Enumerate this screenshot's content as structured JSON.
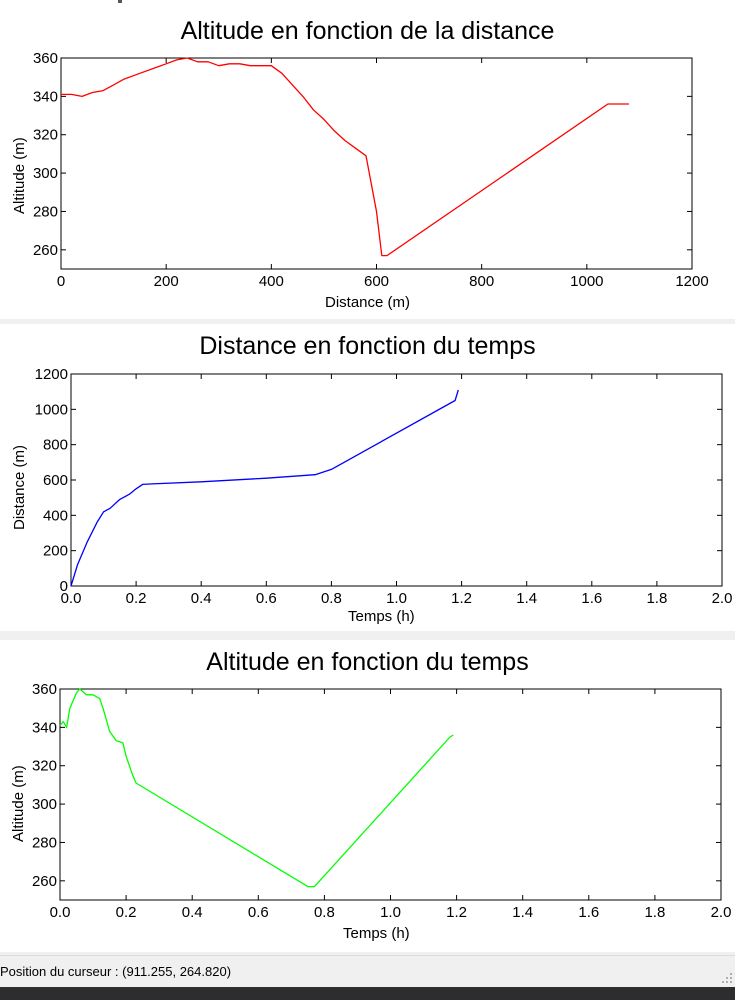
{
  "charts": [
    {
      "title": "Altitude en fonction de la distance",
      "xlabel": "Distance (m)",
      "ylabel": "Altitude (m)",
      "color": "#ff0000",
      "chart_data": {
        "type": "line",
        "xlim": [
          0,
          1200
        ],
        "ylim": [
          250,
          360
        ],
        "xticks": [
          0,
          200,
          400,
          600,
          800,
          1000,
          1200
        ],
        "yticks": [
          260,
          280,
          300,
          320,
          340,
          360
        ],
        "x": [
          0,
          20,
          40,
          60,
          80,
          100,
          120,
          150,
          180,
          200,
          220,
          240,
          260,
          280,
          300,
          320,
          340,
          360,
          380,
          400,
          420,
          440,
          460,
          480,
          500,
          520,
          540,
          560,
          580,
          600,
          610,
          620,
          1040,
          1080
        ],
        "y": [
          341,
          341,
          340,
          342,
          343,
          346,
          349,
          352,
          355,
          357,
          359,
          360,
          358,
          358,
          356,
          357,
          357,
          356,
          356,
          356,
          352,
          346,
          340,
          333,
          328,
          322,
          317,
          313,
          309,
          280,
          257,
          257,
          336,
          336
        ]
      }
    },
    {
      "title": "Distance en fonction du temps",
      "xlabel": "Temps (h)",
      "ylabel": "Distance (m)",
      "color": "#0000ff",
      "chart_data": {
        "type": "line",
        "xlim": [
          0,
          2.0
        ],
        "ylim": [
          0,
          1200
        ],
        "xticks": [
          "0.0",
          "0.2",
          "0.4",
          "0.6",
          "0.8",
          "1.0",
          "1.2",
          "1.4",
          "1.6",
          "1.8",
          "2.0"
        ],
        "yticks": [
          0,
          200,
          400,
          600,
          800,
          1000,
          1200
        ],
        "x": [
          0,
          0.02,
          0.05,
          0.08,
          0.1,
          0.12,
          0.15,
          0.18,
          0.2,
          0.22,
          0.25,
          0.4,
          0.6,
          0.75,
          0.8,
          1.18,
          1.19
        ],
        "y": [
          0,
          120,
          250,
          360,
          420,
          440,
          490,
          520,
          550,
          575,
          578,
          590,
          610,
          630,
          660,
          1050,
          1110
        ]
      }
    },
    {
      "title": "Altitude en fonction du temps",
      "xlabel": "Temps (h)",
      "ylabel": "Altitude (m)",
      "color": "#00ff00",
      "chart_data": {
        "type": "line",
        "xlim": [
          0,
          2.0
        ],
        "ylim": [
          250,
          360
        ],
        "xticks": [
          "0.0",
          "0.2",
          "0.4",
          "0.6",
          "0.8",
          "1.0",
          "1.2",
          "1.4",
          "1.6",
          "1.8",
          "2.0"
        ],
        "yticks": [
          260,
          280,
          300,
          320,
          340,
          360
        ],
        "x": [
          0,
          0.01,
          0.02,
          0.03,
          0.05,
          0.06,
          0.08,
          0.1,
          0.12,
          0.13,
          0.15,
          0.17,
          0.19,
          0.2,
          0.22,
          0.23,
          0.75,
          0.77,
          1.18,
          1.19
        ],
        "y": [
          341,
          343,
          340,
          350,
          358,
          360,
          357,
          357,
          355,
          350,
          338,
          333,
          332,
          325,
          315,
          311,
          257,
          257,
          335,
          336
        ]
      }
    }
  ],
  "status": {
    "text": "Position du curseur : (911.255, 264.820)"
  }
}
